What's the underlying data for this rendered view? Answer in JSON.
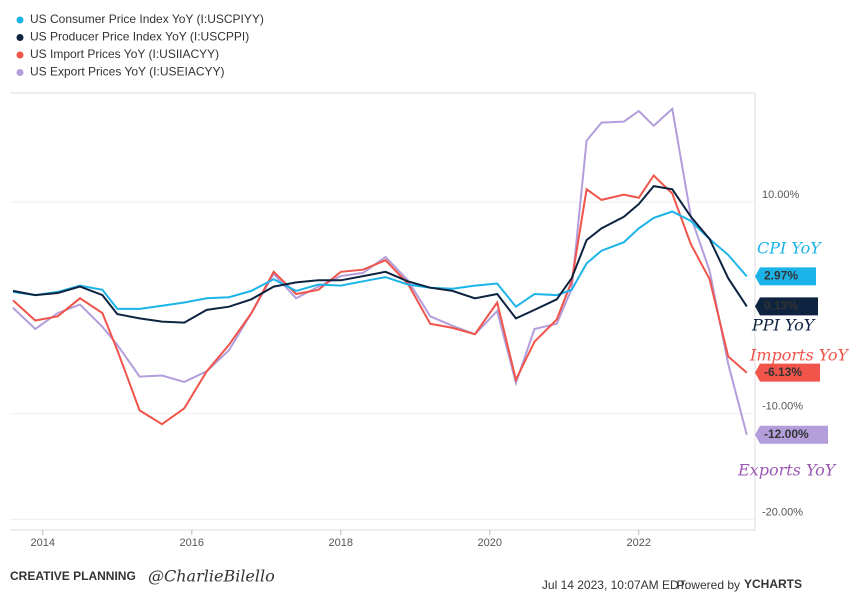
{
  "chart_data": {
    "type": "line",
    "x": [
      2013.6,
      2013.9,
      2014.2,
      2014.5,
      2014.8,
      2015.0,
      2015.3,
      2015.6,
      2015.9,
      2016.2,
      2016.5,
      2016.8,
      2017.1,
      2017.4,
      2017.7,
      2018.0,
      2018.3,
      2018.6,
      2018.9,
      2019.2,
      2019.5,
      2019.8,
      2020.1,
      2020.35,
      2020.6,
      2020.9,
      2021.1,
      2021.3,
      2021.5,
      2021.8,
      2022.0,
      2022.2,
      2022.45,
      2022.7,
      2022.95,
      2023.2,
      2023.45
    ],
    "xlim": [
      2013.56,
      2023.56
    ],
    "xticks": [
      2014,
      2016,
      2018,
      2020,
      2022
    ],
    "ylim": [
      -21,
      20.3
    ],
    "yticks": [
      {
        "value": -20,
        "label": "-20.00%"
      },
      {
        "value": -10,
        "label": "-10.00%"
      },
      {
        "value": 10,
        "label": "10.00%"
      }
    ],
    "grid": true,
    "series": [
      {
        "name": "US Consumer Price Index YoY (I:USCPIYY)",
        "color": "#1cb4e8",
        "values": [
          1.5,
          1.2,
          1.5,
          2.1,
          1.7,
          -0.1,
          -0.1,
          0.2,
          0.5,
          0.9,
          1.0,
          1.6,
          2.7,
          1.6,
          2.2,
          2.1,
          2.5,
          2.9,
          2.2,
          1.9,
          1.8,
          2.1,
          2.3,
          0.1,
          1.3,
          1.2,
          1.7,
          4.2,
          5.4,
          6.2,
          7.5,
          8.5,
          9.1,
          8.2,
          6.5,
          5.0,
          2.97
        ],
        "value_labels": [
          null,
          null,
          null,
          null,
          null,
          null,
          null,
          null,
          null,
          null,
          null,
          null,
          null,
          null,
          null,
          null,
          null,
          null,
          null,
          null,
          null,
          null,
          null,
          null,
          null,
          null,
          null,
          null,
          null,
          null,
          null,
          null,
          null,
          null,
          null,
          null,
          "2.97%"
        ]
      },
      {
        "name": "US Producer Price Index YoY (I:USCPPI)",
        "color": "#0d2340",
        "values": [
          1.6,
          1.2,
          1.4,
          2.0,
          1.2,
          -0.6,
          -1.0,
          -1.3,
          -1.4,
          -0.2,
          0.1,
          0.8,
          2.0,
          2.4,
          2.6,
          2.6,
          3.0,
          3.4,
          2.5,
          1.9,
          1.6,
          0.9,
          1.3,
          -1.0,
          -0.2,
          0.8,
          2.8,
          6.4,
          7.5,
          8.6,
          9.8,
          11.5,
          11.2,
          8.6,
          6.5,
          2.8,
          0.13
        ],
        "value_labels": [
          null,
          null,
          null,
          null,
          null,
          null,
          null,
          null,
          null,
          null,
          null,
          null,
          null,
          null,
          null,
          null,
          null,
          null,
          null,
          null,
          null,
          null,
          null,
          null,
          null,
          null,
          null,
          null,
          null,
          null,
          null,
          null,
          null,
          null,
          null,
          null,
          "0.13%"
        ]
      },
      {
        "name": "US Import Prices YoY (I:USIIACYY)",
        "color": "#f0544a",
        "values": [
          0.7,
          -1.2,
          -0.8,
          0.9,
          -0.5,
          -4.0,
          -9.7,
          -11.0,
          -9.5,
          -6.0,
          -3.5,
          -0.5,
          3.4,
          1.3,
          1.7,
          3.4,
          3.6,
          4.5,
          2.3,
          -1.5,
          -1.9,
          -2.5,
          0.5,
          -6.8,
          -3.2,
          -1.1,
          2.5,
          11.2,
          10.2,
          10.7,
          10.4,
          12.5,
          10.8,
          6.0,
          2.7,
          -4.6,
          -6.13
        ],
        "value_labels": [
          null,
          null,
          null,
          null,
          null,
          null,
          null,
          null,
          null,
          null,
          null,
          null,
          null,
          null,
          null,
          null,
          null,
          null,
          null,
          null,
          null,
          null,
          null,
          null,
          null,
          null,
          null,
          null,
          null,
          null,
          null,
          null,
          null,
          null,
          null,
          null,
          "-6.13%"
        ]
      },
      {
        "name": "US Export Prices YoY (I:USEIACYY)",
        "color": "#b39ddb",
        "values": [
          0.0,
          -2.0,
          -0.5,
          0.3,
          -1.8,
          -3.5,
          -6.5,
          -6.4,
          -7.0,
          -6.0,
          -4.0,
          -0.5,
          3.2,
          0.9,
          2.0,
          3.0,
          3.3,
          4.8,
          2.6,
          -0.8,
          -1.7,
          -2.5,
          -0.3,
          -7.1,
          -2.0,
          -1.5,
          1.8,
          15.8,
          17.5,
          17.6,
          18.6,
          17.2,
          18.8,
          8.6,
          3.5,
          -5.3,
          -12.0
        ],
        "value_labels": [
          null,
          null,
          null,
          null,
          null,
          null,
          null,
          null,
          null,
          null,
          null,
          null,
          null,
          null,
          null,
          null,
          null,
          null,
          null,
          null,
          null,
          null,
          null,
          null,
          null,
          null,
          null,
          null,
          null,
          null,
          null,
          null,
          null,
          null,
          null,
          null,
          "-12.00%"
        ]
      }
    ],
    "annotations": [
      {
        "text": "CPI YoY",
        "color": "#1cb4e8"
      },
      {
        "text": "PPI YoY",
        "color": "#0d2340"
      },
      {
        "text": "Imports YoY",
        "color": "#f0544a"
      },
      {
        "text": "Exports YoY",
        "color": "#9b59b6"
      }
    ]
  },
  "footer": {
    "brand": "CREATIVE PLANNING",
    "handle": "@CharlieBilello",
    "timestamp": "Jul 14 2023, 10:07AM EDT.",
    "powered": "Powered by",
    "provider": "YCHARTS"
  }
}
